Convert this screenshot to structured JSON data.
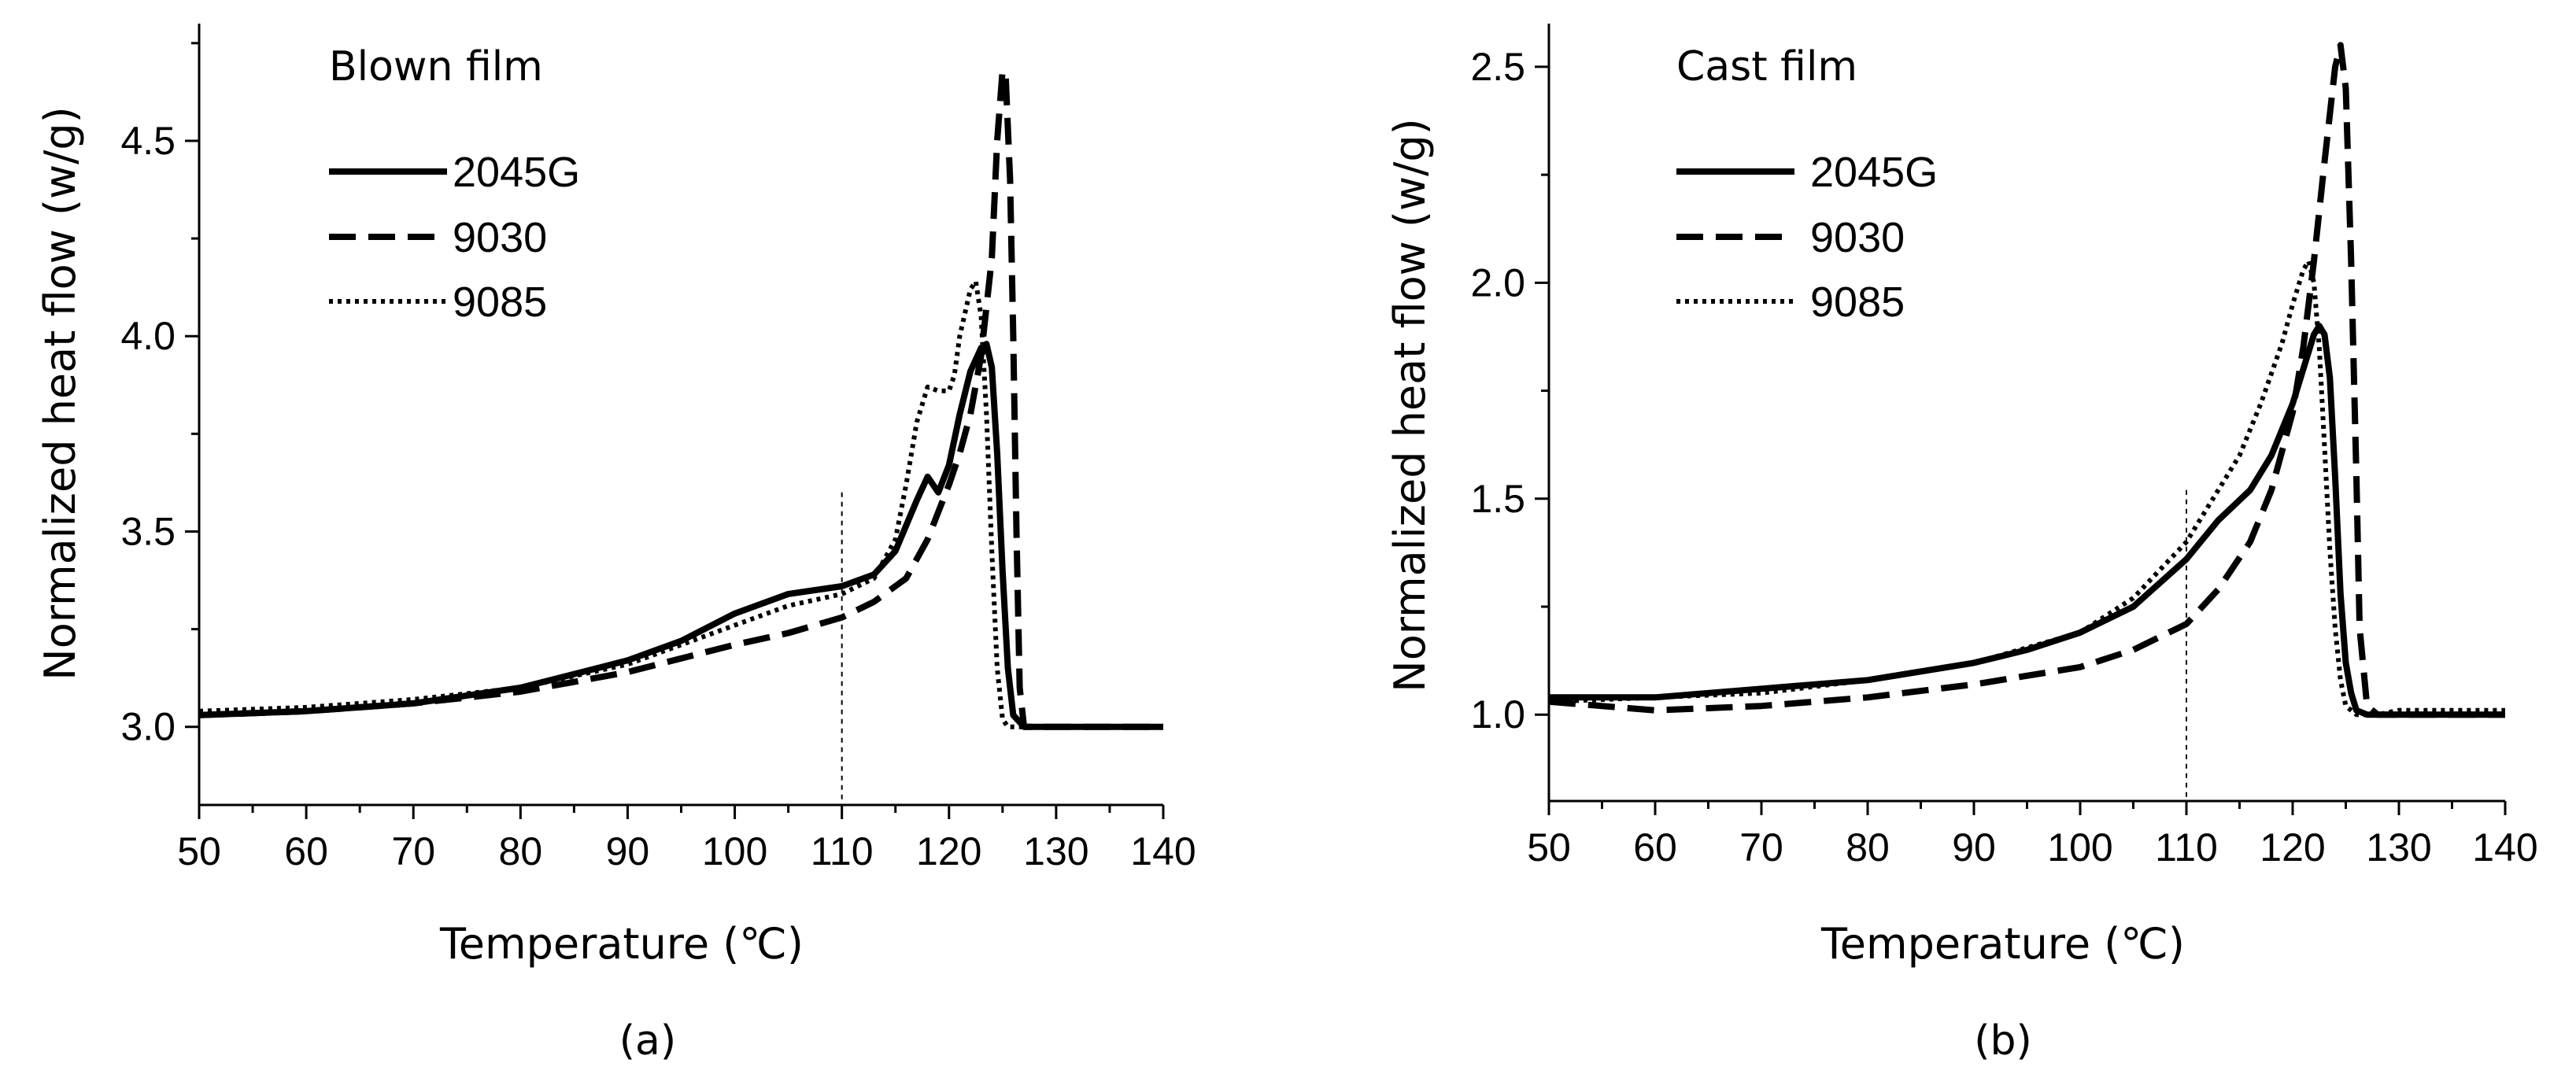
{
  "chart_data": [
    {
      "type": "line",
      "panel_label": "(a)",
      "title": "Blown film",
      "xlabel": "Temperature (℃)",
      "ylabel": "Normalized heat flow (w/g)",
      "xlim": [
        50,
        140
      ],
      "ylim": [
        2.8,
        4.8
      ],
      "xticks": [
        50,
        60,
        70,
        80,
        90,
        100,
        110,
        120,
        130,
        140
      ],
      "yticks": [
        3.0,
        3.5,
        4.0,
        4.5
      ],
      "ytick_labels": [
        "3.0",
        "3.5",
        "4.0",
        "4.5"
      ],
      "reference_x": 110,
      "legend": [
        "2045G",
        "9030",
        "9085"
      ],
      "series": [
        {
          "name": "2045G",
          "style": "solid",
          "x": [
            50,
            60,
            70,
            80,
            90,
            95,
            100,
            105,
            110,
            113,
            115,
            117,
            118,
            119,
            120,
            121,
            122,
            123,
            123.5,
            124,
            124.5,
            125,
            125.5,
            126,
            127,
            128,
            130,
            135,
            140
          ],
          "y": [
            3.03,
            3.04,
            3.06,
            3.1,
            3.17,
            3.22,
            3.29,
            3.34,
            3.36,
            3.39,
            3.45,
            3.58,
            3.64,
            3.6,
            3.67,
            3.8,
            3.91,
            3.97,
            3.98,
            3.92,
            3.7,
            3.4,
            3.15,
            3.03,
            3.0,
            3.0,
            3.0,
            3.0,
            3.0
          ]
        },
        {
          "name": "9030",
          "style": "dashed",
          "x": [
            50,
            60,
            70,
            80,
            90,
            100,
            105,
            110,
            113,
            116,
            118,
            120,
            121,
            122,
            123,
            124,
            124.5,
            125,
            125.3,
            125.7,
            126,
            126.3,
            126.6,
            127,
            128,
            130,
            135,
            140
          ],
          "y": [
            3.03,
            3.04,
            3.06,
            3.09,
            3.14,
            3.21,
            3.24,
            3.28,
            3.32,
            3.38,
            3.48,
            3.62,
            3.7,
            3.8,
            3.95,
            4.2,
            4.5,
            4.68,
            4.66,
            4.4,
            4.0,
            3.5,
            3.1,
            3.0,
            3.0,
            3.0,
            3.0,
            3.0
          ]
        },
        {
          "name": "9085",
          "style": "dotted",
          "x": [
            50,
            60,
            70,
            80,
            90,
            100,
            105,
            110,
            113,
            115,
            116,
            117,
            118,
            119,
            120,
            120.5,
            121,
            122,
            122.5,
            123,
            123.5,
            124,
            124.5,
            125,
            125.5,
            126,
            128,
            130,
            135,
            140
          ],
          "y": [
            3.04,
            3.05,
            3.07,
            3.1,
            3.16,
            3.26,
            3.31,
            3.34,
            3.38,
            3.48,
            3.62,
            3.78,
            3.87,
            3.86,
            3.86,
            3.9,
            4.0,
            4.12,
            4.14,
            4.05,
            3.8,
            3.45,
            3.15,
            3.02,
            3.0,
            3.0,
            3.0,
            3.0,
            3.0,
            3.0
          ]
        }
      ]
    },
    {
      "type": "line",
      "panel_label": "(b)",
      "title": "Cast film",
      "xlabel": "Temperature (℃)",
      "ylabel": "Normalized heat flow (w/g)",
      "xlim": [
        50,
        140
      ],
      "ylim": [
        0.8,
        2.6
      ],
      "xticks": [
        50,
        60,
        70,
        80,
        90,
        100,
        110,
        120,
        130,
        140
      ],
      "yticks": [
        1.0,
        1.5,
        2.0,
        2.5
      ],
      "ytick_labels": [
        "1.0",
        "1.5",
        "2.0",
        "2.5"
      ],
      "reference_x": 110,
      "legend": [
        "2045G",
        "9030",
        "9085"
      ],
      "series": [
        {
          "name": "2045G",
          "style": "solid",
          "x": [
            50,
            60,
            70,
            80,
            90,
            95,
            100,
            105,
            110,
            113,
            116,
            118,
            120,
            121,
            122,
            122.5,
            123,
            123.5,
            124,
            124.5,
            125,
            125.5,
            126,
            127,
            130,
            135,
            140
          ],
          "y": [
            1.04,
            1.04,
            1.06,
            1.08,
            1.12,
            1.15,
            1.19,
            1.25,
            1.36,
            1.45,
            1.52,
            1.6,
            1.72,
            1.8,
            1.88,
            1.9,
            1.88,
            1.78,
            1.55,
            1.28,
            1.12,
            1.05,
            1.01,
            1.0,
            1.0,
            1.0,
            1.0
          ]
        },
        {
          "name": "9030",
          "style": "dashed",
          "x": [
            50,
            60,
            70,
            80,
            90,
            100,
            105,
            110,
            113,
            116,
            118,
            120,
            121,
            122,
            123,
            124,
            124.5,
            125,
            125.5,
            126,
            126.3,
            127,
            128,
            130,
            135,
            140
          ],
          "y": [
            1.03,
            1.01,
            1.02,
            1.04,
            1.07,
            1.11,
            1.15,
            1.21,
            1.29,
            1.4,
            1.52,
            1.7,
            1.85,
            2.05,
            2.28,
            2.5,
            2.55,
            2.45,
            2.05,
            1.55,
            1.2,
            1.02,
            1.0,
            1.0,
            1.0,
            1.0
          ]
        },
        {
          "name": "9085",
          "style": "dotted",
          "x": [
            50,
            60,
            70,
            80,
            90,
            100,
            105,
            110,
            113,
            115,
            117,
            119,
            120,
            121,
            121.5,
            122,
            122.5,
            123,
            123.5,
            124,
            124.5,
            125,
            126,
            128,
            130,
            135,
            140
          ],
          "y": [
            1.03,
            1.04,
            1.05,
            1.08,
            1.12,
            1.19,
            1.27,
            1.4,
            1.52,
            1.6,
            1.72,
            1.86,
            1.95,
            2.03,
            2.05,
            2.0,
            1.85,
            1.62,
            1.38,
            1.2,
            1.08,
            1.02,
            1.0,
            1.0,
            1.01,
            1.01,
            1.01
          ]
        }
      ]
    }
  ]
}
